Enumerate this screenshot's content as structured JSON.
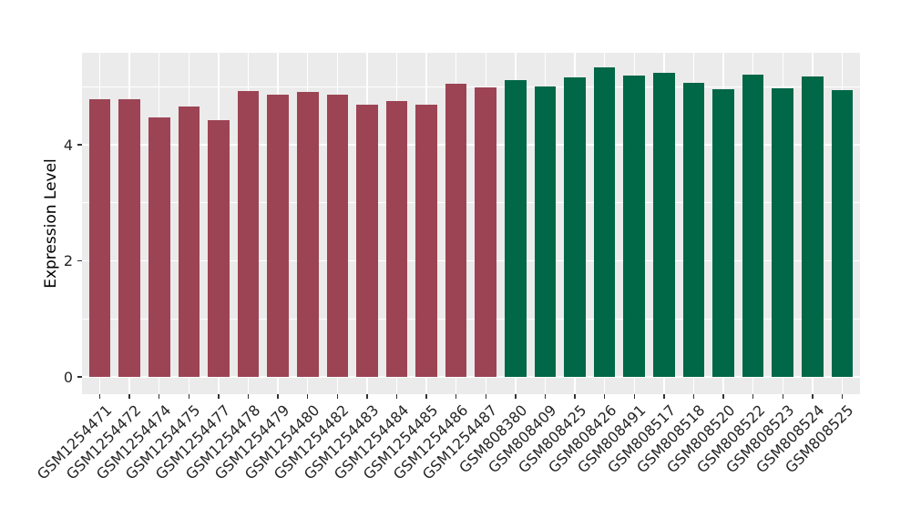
{
  "figure": {
    "background": "#FFFFFF",
    "panel_background": "#EBEBEB",
    "grid_color": "#FFFFFF",
    "axis_text_color": "#262626",
    "axis_title_color": "#000000",
    "tick_color": "#333333"
  },
  "chart_data": {
    "type": "bar",
    "title": "",
    "xlabel": "",
    "ylabel": "Expression Level",
    "ylim": [
      0,
      5.6
    ],
    "yticks": [
      0,
      2,
      4
    ],
    "minor_gridlines": [
      1,
      3,
      5
    ],
    "grid": true,
    "legend_position": "none",
    "categories": [
      "GSM1254471",
      "GSM1254472",
      "GSM1254474",
      "GSM1254475",
      "GSM1254477",
      "GSM1254478",
      "GSM1254479",
      "GSM1254480",
      "GSM1254482",
      "GSM1254483",
      "GSM1254484",
      "GSM1254485",
      "GSM1254486",
      "GSM1254487",
      "GSM808380",
      "GSM808409",
      "GSM808425",
      "GSM808426",
      "GSM808491",
      "GSM808517",
      "GSM808518",
      "GSM808520",
      "GSM808522",
      "GSM808523",
      "GSM808524",
      "GSM808525"
    ],
    "values": [
      4.78,
      4.78,
      4.47,
      4.66,
      4.43,
      4.93,
      4.86,
      4.91,
      4.87,
      4.69,
      4.76,
      4.69,
      5.05,
      4.99,
      5.11,
      5.01,
      5.16,
      5.33,
      5.19,
      5.24,
      5.07,
      4.95,
      5.21,
      4.97,
      5.18,
      4.94
    ],
    "groups": [
      "group1",
      "group1",
      "group1",
      "group1",
      "group1",
      "group1",
      "group1",
      "group1",
      "group1",
      "group1",
      "group1",
      "group1",
      "group1",
      "group1",
      "group2",
      "group2",
      "group2",
      "group2",
      "group2",
      "group2",
      "group2",
      "group2",
      "group2",
      "group2",
      "group2",
      "group2"
    ],
    "group_colors": {
      "group1": "#9C4454",
      "group2": "#006747"
    }
  }
}
